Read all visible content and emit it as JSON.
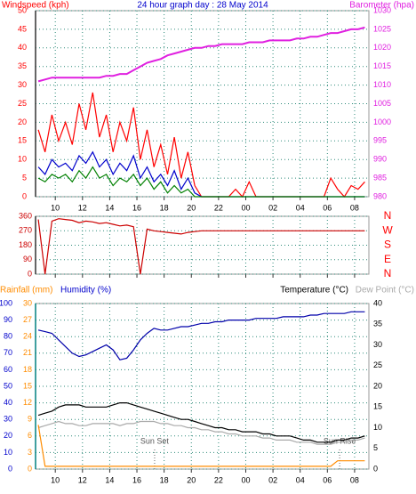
{
  "chart_data": [
    {
      "type": "line",
      "title": "24 hour graph day : 28 May 2014",
      "ylabel": "Windspeed (kph)",
      "y2label": "Barometer (hpa)",
      "ycolor": "#ff0000",
      "y2color": "#e020e0",
      "titlecolor": "#0000cc",
      "grid": true,
      "x": [
        8.75,
        9.25,
        9.75,
        10.25,
        10.75,
        11.25,
        11.75,
        12.25,
        12.75,
        13.25,
        13.75,
        14.25,
        14.75,
        15.25,
        15.75,
        16.25,
        16.75,
        17.25,
        17.75,
        18.25,
        18.75,
        19.25,
        19.75,
        20.25,
        20.75,
        21.25,
        21.75,
        22.25,
        22.75,
        23.25,
        23.75,
        24.25,
        24.75,
        25.25,
        25.75,
        26.25,
        26.75,
        27.25,
        27.75,
        28.25,
        28.75,
        29.25,
        29.75,
        30.25,
        30.75,
        31.25,
        31.75,
        32.25,
        32.75
      ],
      "xlim": [
        8.55,
        33.05
      ],
      "xticks": [
        10,
        12,
        14,
        16,
        18,
        20,
        22,
        {
          "value": 24,
          "label": "00"
        },
        {
          "value": 26,
          "label": "02"
        },
        {
          "value": 28,
          "label": "04"
        },
        {
          "value": 30,
          "label": "06"
        },
        {
          "value": 32,
          "label": "08"
        }
      ],
      "ylim": [
        0,
        50
      ],
      "yticks": [
        0,
        5,
        10,
        15,
        20,
        25,
        30,
        35,
        40,
        45,
        50
      ],
      "y2lim": [
        980,
        1030
      ],
      "y2ticks": [
        980,
        985,
        990,
        995,
        1000,
        1005,
        1010,
        1015,
        1020,
        1025,
        1030
      ],
      "series": [
        {
          "color": "#ff0000",
          "values": [
            18,
            12,
            22,
            15,
            20,
            14,
            25,
            18,
            28,
            16,
            22,
            12,
            20,
            15,
            24,
            10,
            18,
            8,
            14,
            6,
            16,
            5,
            12,
            3,
            0,
            0,
            0,
            0,
            0,
            2,
            0,
            4,
            0,
            0,
            0,
            0,
            0,
            0,
            0,
            0,
            0,
            0,
            0,
            5,
            2,
            0,
            3,
            2,
            4
          ]
        },
        {
          "color": "#0000cc",
          "values": [
            8,
            6,
            10,
            8,
            9,
            7,
            11,
            9,
            12,
            8,
            10,
            6,
            9,
            7,
            11,
            5,
            8,
            4,
            6,
            3,
            7,
            2,
            5,
            1,
            0,
            0,
            0,
            0,
            0,
            0,
            0,
            0,
            0,
            0,
            0,
            0,
            0,
            0,
            0,
            0,
            0,
            0,
            0,
            0,
            0,
            0,
            0,
            0,
            0
          ]
        },
        {
          "color": "#008000",
          "values": [
            5,
            4,
            6,
            5,
            6,
            4,
            7,
            5,
            8,
            5,
            6,
            3,
            5,
            4,
            6,
            3,
            5,
            2,
            4,
            1,
            3,
            1,
            2,
            0,
            0,
            0,
            0,
            0,
            0,
            0,
            0,
            0,
            0,
            0,
            0,
            0,
            0,
            0,
            0,
            0,
            0,
            0,
            0,
            0,
            0,
            0,
            0,
            0,
            0
          ]
        },
        {
          "color": "#e020e0",
          "axis": "y2",
          "values": [
            1011,
            1011.5,
            1012,
            1012,
            1012,
            1012,
            1012,
            1012,
            1012,
            1012,
            1012.5,
            1012.5,
            1013,
            1013,
            1014,
            1015,
            1016,
            1016.5,
            1017,
            1018,
            1018.5,
            1019,
            1019.5,
            1020,
            1020,
            1020.5,
            1020.5,
            1021,
            1021,
            1021,
            1021,
            1021.5,
            1021.5,
            1021.5,
            1022,
            1022,
            1022,
            1022,
            1022.5,
            1022.5,
            1023,
            1023,
            1023.5,
            1024,
            1024,
            1024.5,
            1025,
            1025,
            1025.5
          ]
        }
      ]
    },
    {
      "type": "line",
      "ycolor": "#cc0000",
      "y2color": "#ff0000",
      "grid": true,
      "x": [
        8.75,
        9.25,
        9.75,
        10.25,
        10.75,
        11.25,
        11.75,
        12.25,
        12.75,
        13.25,
        13.75,
        14.25,
        14.75,
        15.25,
        15.75,
        16.25,
        16.75,
        17.25,
        17.75,
        18.25,
        18.75,
        19.25,
        19.75,
        20.25,
        20.75,
        21.25,
        21.75,
        22.25,
        22.75,
        23.25,
        23.75,
        24.25,
        24.75,
        25.25,
        25.75,
        26.25,
        26.75,
        27.25,
        27.75,
        28.25,
        28.75,
        29.25,
        29.75,
        30.25,
        30.75,
        31.25,
        31.75,
        32.25,
        32.75
      ],
      "xlim": [
        8.55,
        33.05
      ],
      "xticks": [
        10,
        12,
        14,
        16,
        18,
        20,
        22,
        24,
        26,
        28,
        30,
        32
      ],
      "ylim": [
        0,
        360
      ],
      "yticks": [
        0,
        90,
        180,
        270,
        360
      ],
      "y2lim": [
        0,
        360
      ],
      "y2ticks": [
        {
          "value": 0,
          "label": "N"
        },
        {
          "value": 90,
          "label": "E"
        },
        {
          "value": 180,
          "label": "S"
        },
        {
          "value": 270,
          "label": "W"
        },
        {
          "value": 360,
          "label": "N"
        }
      ],
      "series": [
        {
          "color": "#cc0000",
          "values": [
            340,
            0,
            330,
            345,
            340,
            335,
            320,
            330,
            325,
            315,
            320,
            310,
            300,
            305,
            295,
            0,
            280,
            270,
            265,
            260,
            255,
            250,
            260,
            265,
            270,
            270,
            270,
            270,
            270,
            270,
            270,
            270,
            270,
            270,
            270,
            270,
            270,
            270,
            270,
            270,
            270,
            270,
            270,
            270,
            270,
            270,
            270,
            270,
            270
          ]
        }
      ]
    },
    {
      "type": "line",
      "ylabel": "Humidity (%)",
      "y2label": "Temperature (°C)",
      "y3label": "Rainfall (mm)",
      "dewlabel": "Dew Point (°C)",
      "ycolor": "#0000cc",
      "y2color": "#000000",
      "y3color": "#ff8c00",
      "dewcolor": "#aaaaaa",
      "grid": true,
      "x": [
        8.75,
        9.25,
        9.75,
        10.25,
        10.75,
        11.25,
        11.75,
        12.25,
        12.75,
        13.25,
        13.75,
        14.25,
        14.75,
        15.25,
        15.75,
        16.25,
        16.75,
        17.25,
        17.75,
        18.25,
        18.75,
        19.25,
        19.75,
        20.25,
        20.75,
        21.25,
        21.75,
        22.25,
        22.75,
        23.25,
        23.75,
        24.25,
        24.75,
        25.25,
        25.75,
        26.25,
        26.75,
        27.25,
        27.75,
        28.25,
        28.75,
        29.25,
        29.75,
        30.25,
        30.75,
        31.25,
        31.75,
        32.25,
        32.75
      ],
      "xlim": [
        8.55,
        33.05
      ],
      "xticks": [
        10,
        12,
        14,
        16,
        18,
        20,
        22,
        {
          "value": 24,
          "label": "00"
        },
        {
          "value": 26,
          "label": "02"
        },
        {
          "value": 28,
          "label": "04"
        },
        {
          "value": 30,
          "label": "06"
        },
        {
          "value": 32,
          "label": "08"
        }
      ],
      "ylim": [
        0,
        100
      ],
      "yticks": [
        0,
        10,
        20,
        30,
        40,
        50,
        60,
        70,
        80,
        90,
        100
      ],
      "y2lim": [
        0,
        40
      ],
      "y2ticks": [
        0,
        5,
        10,
        15,
        20,
        25,
        30,
        35,
        40
      ],
      "y3lim": [
        0,
        30
      ],
      "y3ticks": [
        0,
        3,
        6,
        9,
        12,
        15,
        18,
        21,
        24,
        27,
        30
      ],
      "annotations": [
        {
          "text": "Sun Set",
          "x": 17.3
        },
        {
          "text": "Sun Rise",
          "x": 30.9
        }
      ],
      "series": [
        {
          "color": "#0000aa",
          "values": [
            84,
            83,
            82,
            78,
            74,
            70,
            68,
            69,
            71,
            73,
            75,
            72,
            66,
            67,
            72,
            78,
            82,
            85,
            84,
            84,
            85,
            86,
            86,
            87,
            88,
            88,
            89,
            89,
            90,
            90,
            90,
            90,
            91,
            91,
            91,
            91,
            92,
            92,
            92,
            92,
            93,
            93,
            94,
            94,
            94,
            94,
            95,
            95,
            95
          ]
        },
        {
          "color": "#000000",
          "axis": "y2",
          "values": [
            13,
            13.5,
            14,
            15,
            15.5,
            15.5,
            15.5,
            15,
            15,
            15,
            15,
            15.5,
            16,
            16,
            15.5,
            15,
            14.5,
            14,
            13.5,
            13,
            12.5,
            12,
            12,
            11.5,
            11,
            10.5,
            10,
            10,
            9.5,
            9.5,
            9,
            9,
            9,
            8.5,
            8.5,
            8,
            8,
            8,
            7.5,
            7,
            7,
            6.5,
            6.5,
            6.5,
            7,
            7,
            7.5,
            7.5,
            8
          ]
        },
        {
          "color": "#aaaaaa",
          "axis": "y2",
          "values": [
            10,
            10.5,
            11,
            11.5,
            11,
            11,
            10.5,
            10.5,
            11,
            11,
            11,
            11,
            10.5,
            11,
            11,
            11.5,
            11.5,
            11.5,
            11,
            11,
            10.5,
            10.5,
            10,
            10,
            9.5,
            9.5,
            9,
            9,
            8.5,
            8.5,
            8,
            8,
            8,
            7.5,
            7.5,
            7,
            7,
            7,
            6.5,
            6.5,
            6.5,
            6,
            6,
            6,
            6.5,
            6.5,
            7,
            7,
            7.5
          ]
        },
        {
          "color": "#ff8c00",
          "axis": "y3",
          "values": [
            8,
            0.5,
            0.5,
            0.5,
            0.5,
            0.5,
            0.5,
            0.5,
            0.5,
            0.5,
            0.5,
            0.5,
            0.5,
            0.5,
            0.5,
            0.5,
            0.5,
            0.5,
            0.5,
            0.5,
            0.5,
            0.5,
            0.5,
            0.5,
            0.5,
            0.5,
            0.5,
            0.5,
            0.5,
            0.5,
            0.5,
            0.5,
            0.5,
            0.5,
            0.5,
            0.5,
            0.5,
            0.5,
            0.5,
            0.5,
            0.5,
            0.5,
            0.5,
            0.5,
            1.5,
            1.5,
            1.5,
            1.5,
            1.5
          ]
        }
      ]
    }
  ]
}
